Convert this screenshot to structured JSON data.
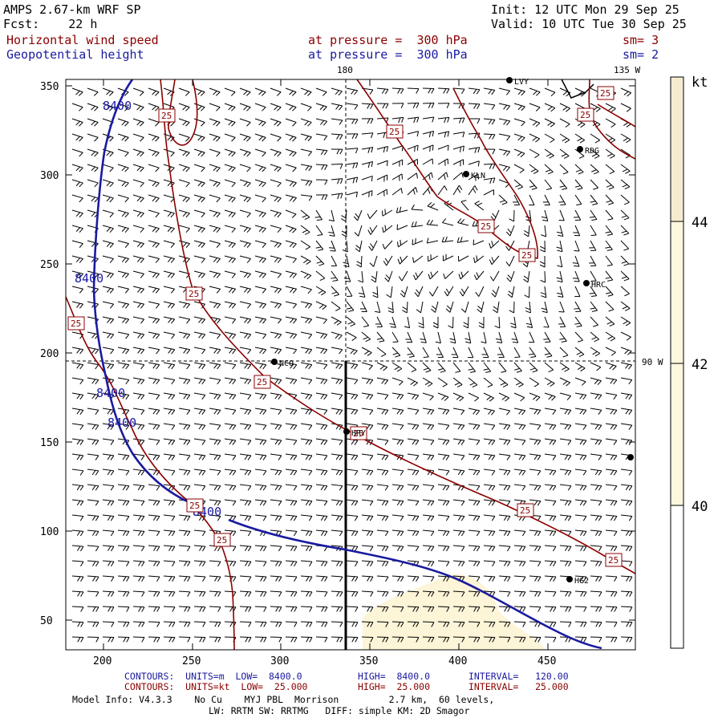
{
  "header": {
    "model": "AMPS 2.67-km WRF SP",
    "init": "Init: 12 UTC Mon 29 Sep 25",
    "fcst": "Fcst:    22 h",
    "valid": "Valid: 10 UTC Tue 30 Sep 25",
    "field1": "Horizontal wind speed",
    "field1_level": "at pressure =  300 hPa",
    "field1_sm": "sm= 3",
    "field2": "Geopotential height",
    "field2_level": "at pressure =  300 hPa",
    "field2_sm": "sm= 2"
  },
  "map": {
    "meridian_180": "180",
    "meridian_135w": "135 W",
    "meridian_90w": "90 W",
    "x_ticks": [
      "200",
      "250",
      "300",
      "350",
      "400",
      "450"
    ],
    "y_ticks": [
      "350",
      "300",
      "250",
      "200",
      "150",
      "100",
      "50"
    ],
    "stations": [
      {
        "id": "LVY",
        "label": "LVY"
      },
      {
        "id": "RDG",
        "label": "RDG"
      },
      {
        "id": "KLN",
        "label": "KLN"
      },
      {
        "id": "HRC",
        "label": "HRC"
      },
      {
        "id": "NCO",
        "label": "NCO"
      },
      {
        "id": "HRY",
        "label": "HRY"
      },
      {
        "id": "HG2",
        "label": "HG2"
      }
    ],
    "height_contour_label": "8400",
    "speed_contour_label": "25"
  },
  "colorbar": {
    "unit": "kt",
    "labels": [
      "44",
      "42",
      "40"
    ],
    "colors": [
      "#f5ecd0",
      "#fdf7de",
      "#ffffff"
    ]
  },
  "footer": {
    "line1_left": "CONTOURS:  UNITS=m  LOW=  8400.0",
    "line1_mid": "HIGH=  8400.0",
    "line1_right": "INTERVAL=   120.00",
    "line2_left": "CONTOURS:  UNITS=kt  LOW=  25.000",
    "line2_mid": "HIGH=  25.000",
    "line2_right": "INTERVAL=   25.000",
    "line3": "Model Info: V4.3.3    No Cu    MYJ PBL  Morrison         2.7 km,  60 levels,",
    "line4": "LW: RRTM SW: RRTMG   DIFF: simple KM: 2D Smagor"
  },
  "colors": {
    "height_contour": "#1a1aa0",
    "speed_contour": "#8b0000",
    "shade": "#fdf5d8"
  }
}
